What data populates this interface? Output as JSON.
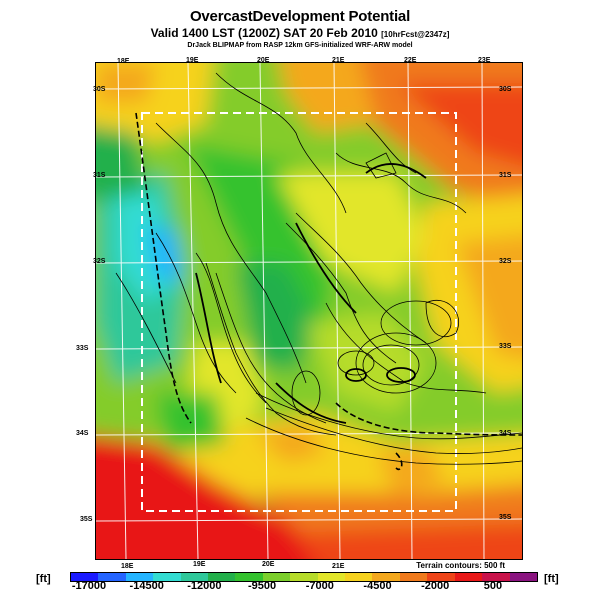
{
  "header": {
    "title": "OvercastDevelopment Potential",
    "subtitle_main": "Valid 1400 LST (1200Z) SAT 20 Feb 2010",
    "subtitle_small": "[10hrFcst@2347z]",
    "credit": "DrJack BLIPMAP from RASP 12km GFS-initialized WRF-ARW model"
  },
  "map": {
    "lon_top": [
      "18E",
      "19E",
      "20E",
      "21E",
      "22E",
      "23E"
    ],
    "lon_bottom": [
      "18E",
      "19E",
      "20E",
      "21E"
    ],
    "lat_left": [
      "30S",
      "31S",
      "32S",
      "33S",
      "34S",
      "35S"
    ],
    "lat_right": [
      "30S",
      "31S",
      "32S",
      "33S",
      "34S",
      "35S"
    ],
    "terrain_note": "Terrain contours: 500 ft"
  },
  "colorbar": {
    "unit_left": "[ft]",
    "unit_right": "[ft]",
    "labels": [
      "-17000",
      "-14500",
      "-12000",
      "-9500",
      "-7000",
      "-4500",
      "-2000",
      "500"
    ],
    "colors": [
      "#1a1aff",
      "#2464ff",
      "#24b4ff",
      "#33dcd2",
      "#2ec89a",
      "#23b04b",
      "#34c22e",
      "#7ccf2c",
      "#b6dc2a",
      "#e2e62a",
      "#f6d21f",
      "#f4a81e",
      "#f07a1c",
      "#ee4418",
      "#e81818",
      "#c8124a",
      "#8a1480"
    ]
  }
}
